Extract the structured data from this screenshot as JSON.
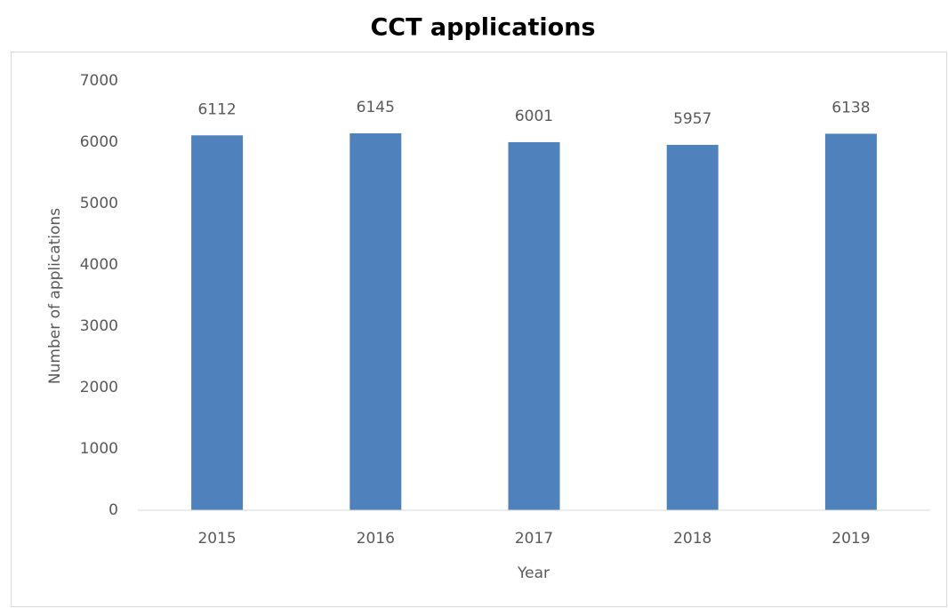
{
  "chart_data": {
    "type": "bar",
    "title": "CCT applications",
    "x_label": "Year",
    "y_label": "Number of applications",
    "categories": [
      "2015",
      "2016",
      "2017",
      "2018",
      "2019"
    ],
    "values": [
      6112,
      6145,
      6001,
      5957,
      6138
    ],
    "color": "#4f81bd",
    "ylim": [
      0,
      7000
    ],
    "yticks": [
      0,
      1000,
      2000,
      3000,
      4000,
      5000,
      6000,
      7000
    ],
    "grid": false
  }
}
